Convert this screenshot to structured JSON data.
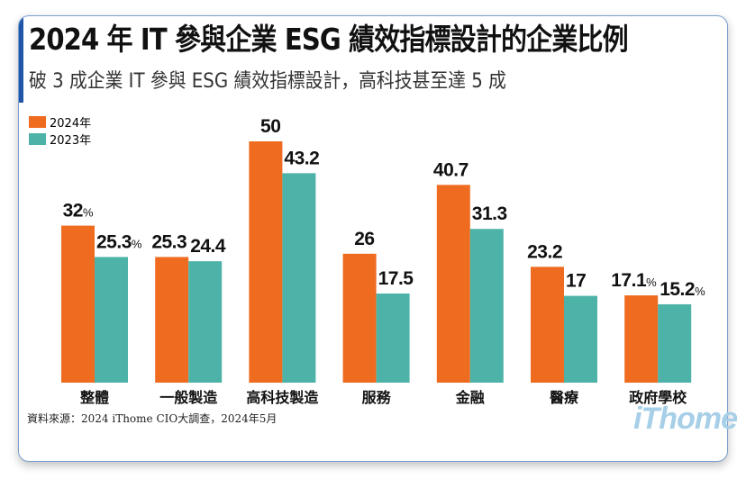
{
  "title": "2024 年 IT 參與企業 ESG 績效指標設計的企業比例",
  "subtitle": "破 3 成企業 IT 參與 ESG 績效指標設計，高科技甚至達 5 成",
  "source": "資料來源：2024 iThome CIO大調查，2024年5月",
  "logo": "iThome",
  "chart_data": {
    "type": "bar",
    "title": "2024 年 IT 參與企業 ESG 績效指標設計的企業比例",
    "categories": [
      "整體",
      "一般製造",
      "高科技製造",
      "服務",
      "金融",
      "醫療",
      "政府學校"
    ],
    "unit": "%",
    "legend_position": "top-left",
    "grid": false,
    "series": [
      {
        "name": "2024年",
        "color": "#ee6b1f",
        "values": [
          32,
          25.3,
          50,
          26,
          40.7,
          23.2,
          17.1
        ],
        "labels": [
          "32",
          "25.3",
          "50",
          "26",
          "40.7",
          "23.2",
          "17.1"
        ],
        "unit_shown": [
          true,
          false,
          false,
          false,
          false,
          false,
          true
        ]
      },
      {
        "name": "2023年",
        "color": "#4db3a8",
        "values": [
          25.3,
          24.4,
          43.2,
          17.5,
          31.3,
          17,
          15.2
        ],
        "labels": [
          "25.3",
          "24.4",
          "43.2",
          "17.5",
          "31.3",
          "17",
          "15.2"
        ],
        "unit_shown": [
          true,
          false,
          false,
          false,
          false,
          false,
          true
        ]
      }
    ]
  }
}
